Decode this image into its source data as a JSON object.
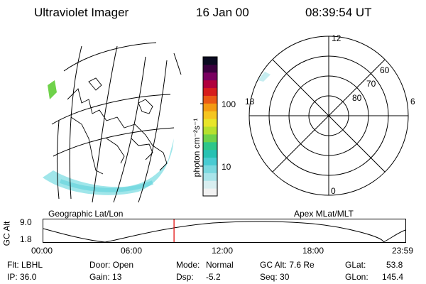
{
  "header": {
    "instrument": "Ultraviolet Imager",
    "date": "16 Jan 00",
    "time": "08:39:54 UT"
  },
  "colorbar": {
    "label": "photon cm⁻²s⁻¹",
    "ticks": [
      "100",
      "10"
    ],
    "colors": [
      "#f2f2f2",
      "#d8eef0",
      "#a9e4ea",
      "#7ad8df",
      "#49cbd2",
      "#27c1b3",
      "#2ec68a",
      "#6fd24a",
      "#b6e02e",
      "#e8e52a",
      "#f5c51f",
      "#f39a12",
      "#ea5a15",
      "#d61d1d",
      "#b0003d",
      "#7a0060",
      "#3a003e",
      "#0a0a20"
    ]
  },
  "geo_map": {
    "label": "Geographic Lat/Lon"
  },
  "polar_plot": {
    "label": "Apex MLat/MLT",
    "mlt_labels": {
      "top": "12",
      "left": "18",
      "right": "6",
      "bottom": "0"
    },
    "lat_labels": [
      "60",
      "70",
      "80"
    ]
  },
  "altitude_plot": {
    "ylabel": "GC Alt",
    "ymax": "9.0",
    "ymin": "1.8",
    "time_ticks": [
      "00:00",
      "06:00",
      "12:00",
      "18:00",
      "23:59"
    ],
    "current_time_fraction": 0.361,
    "marker_color": "#e00000"
  },
  "status": {
    "filter": "Flt: LBHL",
    "door": "Door: Open",
    "mode_label": "Mode:",
    "mode_value": "Normal",
    "gc_alt": "GC Alt: 7.6 Re",
    "glat_label": "GLat:",
    "glat_value": "53.8",
    "ip": "IP: 36.0",
    "gain": "Gain: 13",
    "dsp_label": "Dsp:",
    "dsp_value": "-5.2",
    "seq": "Seq: 30",
    "glon_label": "GLon:",
    "glon_value": "145.4"
  }
}
